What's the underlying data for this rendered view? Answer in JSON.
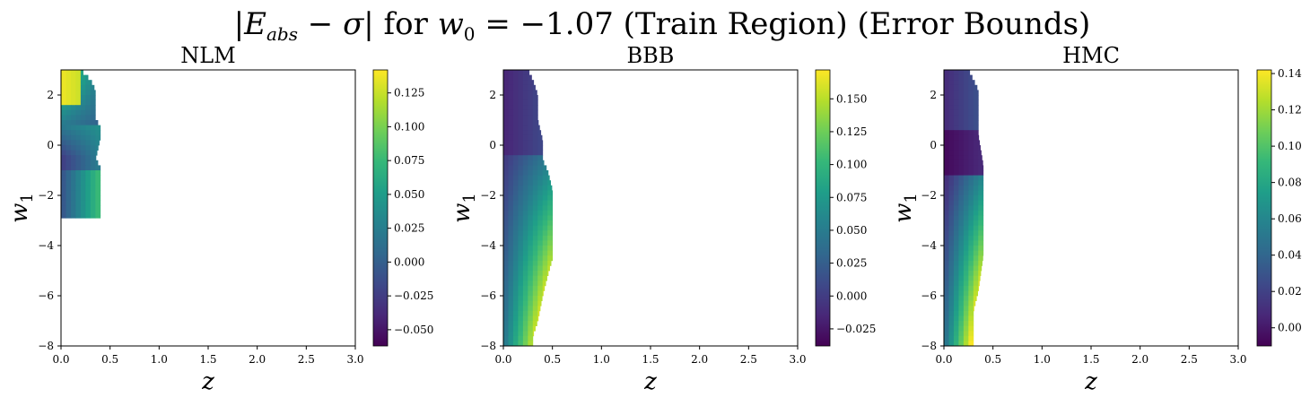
{
  "figure": {
    "suptitle": "|E_abs − σ| for w_0 = −1.07 (Train Region) (Error Bounds)"
  },
  "colors": {
    "viridis": [
      "#440154",
      "#482878",
      "#3e4989",
      "#31688e",
      "#26828e",
      "#1f9e89",
      "#35b779",
      "#6ece58",
      "#b5de2b",
      "#fde725"
    ],
    "axis": "#000000",
    "background": "#ffffff"
  },
  "chart_data": [
    {
      "type": "heatmap",
      "title": "NLM",
      "xlabel": "z",
      "ylabel": "w1",
      "xlim": [
        0.0,
        3.0
      ],
      "ylim": [
        -8,
        3
      ],
      "xticks": [
        "0.0",
        "0.5",
        "1.0",
        "1.5",
        "2.0",
        "2.5",
        "3.0"
      ],
      "yticks": [
        "2",
        "0",
        "−2",
        "−4",
        "−6",
        "−8"
      ],
      "ytick_values": [
        2,
        0,
        -2,
        -4,
        -6,
        -8
      ],
      "colorbar": {
        "range": [
          -0.062,
          0.142
        ],
        "ticks": [
          "0.125",
          "0.100",
          "0.075",
          "0.050",
          "0.025",
          "0.000",
          "−0.025",
          "−0.050"
        ],
        "tick_values": [
          0.125,
          0.1,
          0.075,
          0.05,
          0.025,
          0.0,
          -0.025,
          -0.05
        ]
      },
      "region": {
        "z_step": 0.05,
        "w1_step": 0.2,
        "w1_top": 3.0,
        "w1_bottom": -2.9,
        "z_extent_by_w1": [
          [
            3.0,
            0.2
          ],
          [
            2.6,
            0.3
          ],
          [
            2.2,
            0.35
          ],
          [
            1.0,
            0.35
          ],
          [
            0.8,
            0.4
          ],
          [
            0.3,
            0.4
          ],
          [
            -0.6,
            0.35
          ],
          [
            -0.8,
            0.4
          ],
          [
            -2.1,
            0.4
          ],
          [
            -2.2,
            0.4
          ],
          [
            -2.5,
            0.4
          ],
          [
            -2.9,
            0.4
          ]
        ],
        "value_model": "nlm"
      }
    },
    {
      "type": "heatmap",
      "title": "BBB",
      "xlabel": "z",
      "ylabel": "w1",
      "xlim": [
        0.0,
        3.0
      ],
      "ylim": [
        -8,
        3
      ],
      "xticks": [
        "0.0",
        "0.5",
        "1.0",
        "1.5",
        "2.0",
        "2.5",
        "3.0"
      ],
      "yticks": [
        "2",
        "0",
        "−2",
        "−4",
        "−6",
        "−8"
      ],
      "ytick_values": [
        2,
        0,
        -2,
        -4,
        -6,
        -8
      ],
      "colorbar": {
        "range": [
          -0.038,
          0.172
        ],
        "ticks": [
          "0.150",
          "0.125",
          "0.100",
          "0.075",
          "0.050",
          "0.025",
          "0.000",
          "−0.025"
        ],
        "tick_values": [
          0.15,
          0.125,
          0.1,
          0.075,
          0.05,
          0.025,
          0.0,
          -0.025
        ]
      },
      "region": {
        "z_step": 0.05,
        "w1_step": 0.2,
        "w1_top": 3.0,
        "w1_bottom": -8.0,
        "z_extent_by_w1": [
          [
            3.0,
            0.25
          ],
          [
            2.6,
            0.3
          ],
          [
            2.0,
            0.35
          ],
          [
            1.0,
            0.35
          ],
          [
            0.2,
            0.4
          ],
          [
            -0.6,
            0.4
          ],
          [
            -1.0,
            0.45
          ],
          [
            -1.8,
            0.5
          ],
          [
            -4.5,
            0.5
          ],
          [
            -5.2,
            0.45
          ],
          [
            -6.0,
            0.4
          ],
          [
            -7.0,
            0.35
          ],
          [
            -7.6,
            0.3
          ],
          [
            -8.0,
            0.3
          ]
        ],
        "value_model": "bbb"
      }
    },
    {
      "type": "heatmap",
      "title": "HMC",
      "xlabel": "z",
      "ylabel": "w1",
      "xlim": [
        0.0,
        3.0
      ],
      "ylim": [
        -8,
        3
      ],
      "xticks": [
        "0.0",
        "0.5",
        "1.0",
        "1.5",
        "2.0",
        "2.5",
        "3.0"
      ],
      "yticks": [
        "2",
        "0",
        "−2",
        "−4",
        "−6",
        "−8"
      ],
      "ytick_values": [
        2,
        0,
        -2,
        -4,
        -6,
        -8
      ],
      "colorbar": {
        "range": [
          -0.01,
          0.142
        ],
        "ticks": [
          "0.14",
          "0.12",
          "0.10",
          "0.08",
          "0.06",
          "0.04",
          "0.02",
          "0.00"
        ],
        "tick_values": [
          0.14,
          0.12,
          0.1,
          0.08,
          0.06,
          0.04,
          0.02,
          0.0
        ]
      },
      "region": {
        "z_step": 0.05,
        "w1_step": 0.2,
        "w1_top": 3.0,
        "w1_bottom": -8.0,
        "z_extent_by_w1": [
          [
            3.0,
            0.25
          ],
          [
            2.6,
            0.3
          ],
          [
            2.2,
            0.35
          ],
          [
            0.4,
            0.35
          ],
          [
            -0.8,
            0.4
          ],
          [
            -1.4,
            0.4
          ],
          [
            -4.4,
            0.4
          ],
          [
            -5.8,
            0.35
          ],
          [
            -6.6,
            0.3
          ],
          [
            -7.2,
            0.3
          ],
          [
            -8.0,
            0.3
          ]
        ],
        "value_model": "hmc"
      }
    }
  ]
}
